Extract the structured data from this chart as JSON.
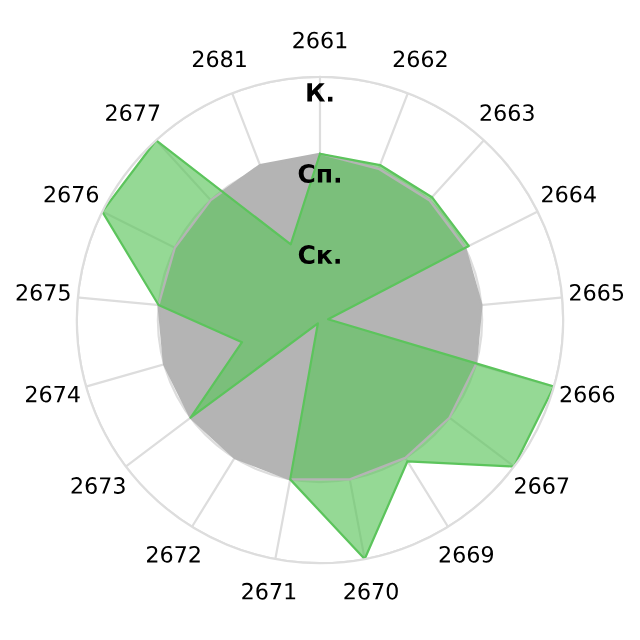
{
  "chart_data": {
    "type": "radar",
    "categories": [
      "2661",
      "2662",
      "2663",
      "2664",
      "2665",
      "2666",
      "2667",
      "2669",
      "2670",
      "2671",
      "2672",
      "2673",
      "2674",
      "2675",
      "2676",
      "2677",
      "2681"
    ],
    "series": [
      {
        "color": "#b4b4b4",
        "values": [
          2.05,
          2.0,
          2.0,
          2.0,
          2.0,
          2.0,
          2.0,
          2.0,
          2.0,
          2.0,
          2.0,
          2.0,
          2.0,
          2.0,
          2.0,
          2.0,
          2.05
        ]
      },
      {
        "color": "#5cc45c",
        "values": [
          2.05,
          2.05,
          2.05,
          2.05,
          0.1,
          3.0,
          3.0,
          2.05,
          3.0,
          2.0,
          0.05,
          2.0,
          1.0,
          2.0,
          3.0,
          3.0,
          1.0
        ]
      }
    ],
    "ylim": [
      0,
      3
    ],
    "yticks": [
      {
        "value": 1,
        "label": "Ск."
      },
      {
        "value": 2,
        "label": "Сп."
      },
      {
        "value": 3,
        "label": "К."
      }
    ],
    "grid": true,
    "legend": false
  }
}
